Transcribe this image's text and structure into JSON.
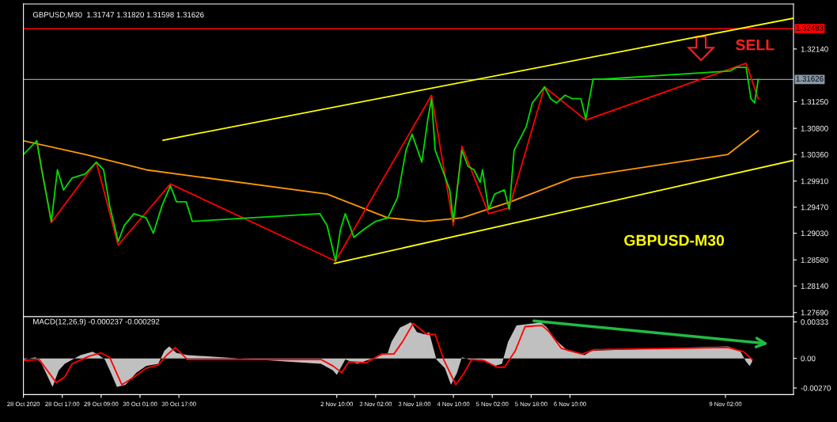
{
  "chart_data": [
    {
      "type": "line",
      "title": "GBPUSD,M30  1.31747 1.31820 1.31598 1.31626",
      "annotations": [
        "SELL",
        "GBPUSD-M30"
      ],
      "xlim": [
        "2020-10-28T01:00",
        "2020-11-10T06:00"
      ],
      "ylim": [
        1.2762,
        1.329
      ],
      "tick_labels": "y",
      "yticks": [
        {
          "value": 1.2769,
          "label": "1.27690"
        },
        {
          "value": 1.2814,
          "label": "1.28140"
        },
        {
          "value": 1.2858,
          "label": "1.28580"
        },
        {
          "value": 1.2903,
          "label": "1.29030"
        },
        {
          "value": 1.2947,
          "label": "1.29470"
        },
        {
          "value": 1.2991,
          "label": "1.29910"
        },
        {
          "value": 1.3036,
          "label": "1.30360"
        },
        {
          "value": 1.308,
          "label": "1.30800"
        },
        {
          "value": 1.3125,
          "label": "1.31250"
        },
        {
          "value": 1.3214,
          "label": "1.32140"
        }
      ],
      "ref_lines": [
        {
          "axis": "y",
          "value": 1.32483,
          "label": "1.32483",
          "color": "#ff0000"
        },
        {
          "axis": "y",
          "value": 1.31626,
          "label": "1.31626",
          "color": "#8899aa"
        }
      ],
      "series": [
        {
          "color": "#ff9900",
          "x": [
            "2020-10-28T01:00",
            "2020-10-29T02:30",
            "2020-10-30T03:30",
            "2020-11-02T06:00",
            "2020-11-03T07:00",
            "2020-11-03T22:00",
            "2020-11-04T13:30",
            "2020-11-05T09:30",
            "2020-11-06T11:00",
            "2020-11-09T03:00",
            "2020-11-09T15:30"
          ],
          "values": [
            1.3059,
            1.3036,
            1.301,
            1.2969,
            1.2929,
            1.2923,
            1.2929,
            1.2956,
            1.2996,
            1.3036,
            1.3076
          ]
        },
        {
          "color": "#00dd00",
          "x": [
            "2020-10-28T01:00",
            "2020-10-28T06:30",
            "2020-10-28T08:30",
            "2020-10-28T12:30",
            "2020-10-28T15:00",
            "2020-10-28T17:30",
            "2020-10-28T21:00",
            "2020-10-29T02:30",
            "2020-10-29T07:00",
            "2020-10-29T10:00",
            "2020-10-29T12:30",
            "2020-10-29T16:00",
            "2020-10-29T18:30",
            "2020-10-29T22:30",
            "2020-10-30T03:30",
            "2020-10-30T06:30",
            "2020-10-30T10:00",
            "2020-10-30T13:30",
            "2020-10-30T16:00",
            "2020-10-30T20:00",
            "2020-10-30T22:30",
            "2020-11-02T03:00",
            "2020-11-02T06:00",
            "2020-11-02T09:30",
            "2020-11-02T11:30",
            "2020-11-02T13:30",
            "2020-11-02T17:00",
            "2020-11-02T21:00",
            "2020-11-03T02:00",
            "2020-11-03T07:00",
            "2020-11-03T11:00",
            "2020-11-03T14:30",
            "2020-11-03T17:00",
            "2020-11-03T21:00",
            "2020-11-03T23:30",
            "2020-11-04T01:00",
            "2020-11-04T02:30",
            "2020-11-04T05:30",
            "2020-11-04T08:30",
            "2020-11-04T10:00",
            "2020-11-04T11:30",
            "2020-11-04T13:30",
            "2020-11-04T16:00",
            "2020-11-04T18:30",
            "2020-11-04T21:00",
            "2020-11-04T22:00",
            "2020-11-05T00:30",
            "2020-11-05T03:00",
            "2020-11-05T07:00",
            "2020-11-05T09:00",
            "2020-11-05T11:00",
            "2020-11-05T13:30",
            "2020-11-05T16:00",
            "2020-11-05T18:30",
            "2020-11-05T21:00",
            "2020-11-05T23:30",
            "2020-11-06T02:00",
            "2020-11-06T04:30",
            "2020-11-06T08:00",
            "2020-11-06T11:00",
            "2020-11-06T14:30",
            "2020-11-06T16:30",
            "2020-11-06T19:30",
            "2020-11-06T23:30",
            "2020-11-09T04:00",
            "2020-11-09T06:30",
            "2020-11-09T10:30",
            "2020-11-09T12:30",
            "2020-11-09T14:00",
            "2020-11-09T15:30"
          ],
          "values": [
            1.3036,
            1.3059,
            1.301,
            1.2923,
            1.301,
            1.2976,
            1.2996,
            1.3003,
            1.3023,
            1.301,
            1.2949,
            1.2889,
            1.2916,
            1.2936,
            1.2929,
            1.2903,
            1.2949,
            1.2983,
            1.2956,
            1.2956,
            1.2923,
            1.2936,
            1.2916,
            1.2856,
            1.2909,
            1.2936,
            1.2896,
            1.2909,
            1.2923,
            1.2929,
            1.2963,
            1.3043,
            1.307,
            1.3023,
            1.3096,
            1.313,
            1.3043,
            1.301,
            1.2976,
            1.2923,
            1.2976,
            1.3043,
            1.3016,
            1.301,
            1.2989,
            1.301,
            1.2943,
            1.2969,
            1.2976,
            1.2943,
            1.3043,
            1.3063,
            1.3083,
            1.3123,
            1.3136,
            1.315,
            1.313,
            1.3123,
            1.3136,
            1.313,
            1.313,
            1.3096,
            1.3163,
            1.3163,
            1.3177,
            1.3183,
            1.3183,
            1.313,
            1.3123,
            1.3163
          ]
        },
        {
          "color": "#ff0000",
          "x": [
            "2020-10-28T06:30",
            "2020-10-28T12:30",
            "2020-10-29T07:00",
            "2020-10-29T16:00",
            "2020-10-30T13:30",
            "2020-11-02T09:30",
            "2020-11-04T01:00",
            "2020-11-04T10:00",
            "2020-11-04T13:30",
            "2020-11-05T00:30",
            "2020-11-05T09:00",
            "2020-11-05T23:30",
            "2020-11-06T16:30",
            "2020-11-09T10:30",
            "2020-11-09T15:30"
          ],
          "values": [
            1.3059,
            1.2921,
            1.3023,
            1.2883,
            1.2986,
            1.2856,
            1.3136,
            1.2916,
            1.305,
            1.2936,
            1.2946,
            1.315,
            1.3094,
            1.319,
            1.313
          ]
        },
        {
          "color": "#ffff00",
          "x": [
            "2020-10-30T10:30",
            "2020-11-10T06:00"
          ],
          "values": [
            1.306,
            1.3266
          ]
        },
        {
          "color": "#ffff00",
          "x": [
            "2020-11-02T09:00",
            "2020-11-10T06:00"
          ],
          "values": [
            1.2852,
            1.3026
          ]
        }
      ]
    },
    {
      "type": "area",
      "title": "MACD(12,26,9) -0.000237 -0.000292",
      "xlim": [
        "2020-10-28T01:00",
        "2020-11-10T06:00"
      ],
      "ylim": [
        -0.0033,
        0.0038
      ],
      "xticks": [
        {
          "value": "2020-10-28T01:00",
          "label": "28 Oct 2020"
        },
        {
          "value": "2020-10-28T17:00",
          "label": "28 Oct 17:00"
        },
        {
          "value": "2020-10-29T09:00",
          "label": "29 Oct 09:00"
        },
        {
          "value": "2020-10-30T01:00",
          "label": "30 Oct 01:00"
        },
        {
          "value": "2020-10-30T17:00",
          "label": "30 Oct 17:00"
        },
        {
          "value": "2020-11-02T10:00",
          "label": "2 Nov 10:00"
        },
        {
          "value": "2020-11-03T02:00",
          "label": "3 Nov 02:00"
        },
        {
          "value": "2020-11-03T18:00",
          "label": "3 Nov 18:00"
        },
        {
          "value": "2020-11-04T10:00",
          "label": "4 Nov 10:00"
        },
        {
          "value": "2020-11-05T02:00",
          "label": "5 Nov 02:00"
        },
        {
          "value": "2020-11-05T18:00",
          "label": "5 Nov 18:00"
        },
        {
          "value": "2020-11-06T10:00",
          "label": "6 Nov 10:00"
        },
        {
          "value": "2020-11-09T02:00",
          "label": "9 Nov 02:00"
        }
      ],
      "yticks": [
        {
          "value": -0.0027,
          "label": "-0.00270"
        },
        {
          "value": 0,
          "label": "0.00"
        },
        {
          "value": 0.00333,
          "label": "0.00333"
        }
      ],
      "series": [
        {
          "color": "#c0c0c0",
          "x": [
            "2020-10-28T01:00",
            "2020-10-28T06:00",
            "2020-10-28T08:30",
            "2020-10-28T13:00",
            "2020-10-28T15:30",
            "2020-10-28T18:00",
            "2020-10-29T00:30",
            "2020-10-29T05:30",
            "2020-10-29T08:00",
            "2020-10-29T10:30",
            "2020-10-29T13:00",
            "2020-10-29T15:30",
            "2020-10-29T19:00",
            "2020-10-29T23:30",
            "2020-10-30T03:30",
            "2020-10-30T08:30",
            "2020-10-30T11:00",
            "2020-10-30T13:00",
            "2020-10-30T16:00",
            "2020-10-30T20:30",
            "2020-11-02T03:30",
            "2020-11-02T08:30",
            "2020-11-02T10:00",
            "2020-11-02T13:30",
            "2020-11-02T18:30",
            "2020-11-02T23:30",
            "2020-11-03T04:30",
            "2020-11-03T07:00",
            "2020-11-03T08:30",
            "2020-11-03T12:00",
            "2020-11-03T16:30",
            "2020-11-03T19:00",
            "2020-11-03T22:00",
            "2020-11-04T00:00",
            "2020-11-04T03:00",
            "2020-11-04T06:30",
            "2020-11-04T09:00",
            "2020-11-04T11:30",
            "2020-11-04T13:30",
            "2020-11-04T16:30",
            "2020-11-04T21:30",
            "2020-11-05T03:00",
            "2020-11-05T06:00",
            "2020-11-05T08:30",
            "2020-11-05T12:00",
            "2020-11-05T19:30",
            "2020-11-05T22:00",
            "2020-11-06T00:30",
            "2020-11-06T04:00",
            "2020-11-06T09:00",
            "2020-11-06T16:00",
            "2020-11-06T19:00",
            "2020-11-09T03:00",
            "2020-11-09T08:00",
            "2020-11-09T10:30",
            "2020-11-09T12:00",
            "2020-11-09T13:00"
          ],
          "values": [
            -0.0001,
            0.0001,
            -0.0005,
            -0.0026,
            -0.0011,
            -0.0005,
            0.0003,
            0.0006,
            0.0003,
            -0.0001,
            -0.0013,
            -0.0026,
            -0.0024,
            -0.0013,
            -0.0007,
            -0.0005,
            0.0007,
            0.0011,
            0.0005,
            0.0003,
            -0.0005,
            -0.0011,
            -0.0015,
            -0.0001,
            -0.0005,
            -0.0001,
            0.0003,
            0.0005,
            0.0015,
            0.0028,
            0.0033,
            0.0024,
            0.0022,
            0.0024,
            -0.0001,
            -0.0009,
            -0.0024,
            -0.0013,
            0.0001,
            -0.0001,
            -0.0001,
            -0.0007,
            -0.0005,
            0.0015,
            0.003,
            0.0032,
            0.0033,
            0.0028,
            0.0017,
            0.0007,
            0.0003,
            0.0007,
            0.0011,
            0.0007,
            -0.0003,
            -0.0007,
            -0.0003
          ]
        },
        {
          "type": "line",
          "color": "#ff0000",
          "x": [
            "2020-10-28T01:00",
            "2020-10-28T07:30",
            "2020-10-28T14:30",
            "2020-10-28T18:00",
            "2020-10-28T21:00",
            "2020-10-29T04:00",
            "2020-10-29T09:00",
            "2020-10-29T12:30",
            "2020-10-29T17:30",
            "2020-10-29T22:30",
            "2020-10-30T03:30",
            "2020-10-30T08:30",
            "2020-10-30T12:00",
            "2020-10-30T15:30",
            "2020-10-30T20:30",
            "2020-11-02T03:30",
            "2020-11-02T08:30",
            "2020-11-02T12:00",
            "2020-11-02T15:00",
            "2020-11-02T22:00",
            "2020-11-03T04:30",
            "2020-11-03T09:30",
            "2020-11-03T13:00",
            "2020-11-03T17:30",
            "2020-11-03T23:00",
            "2020-11-04T02:30",
            "2020-11-04T06:00",
            "2020-11-04T11:00",
            "2020-11-04T14:30",
            "2020-11-04T17:30",
            "2020-11-04T22:30",
            "2020-11-05T04:00",
            "2020-11-05T07:00",
            "2020-11-05T11:30",
            "2020-11-05T15:30",
            "2020-11-05T22:30",
            "2020-11-06T01:30",
            "2020-11-06T06:30",
            "2020-11-06T15:00",
            "2020-11-06T20:00",
            "2020-11-09T03:00",
            "2020-11-09T09:30",
            "2020-11-09T13:00"
          ],
          "values": [
            -0.0002,
            -0.0001,
            -0.0022,
            -0.0017,
            -0.0005,
            0.0002,
            0.0005,
            0.0001,
            -0.0024,
            -0.0017,
            -0.0009,
            -0.0006,
            0.0003,
            0.001,
            -0.0001,
            -0.0001,
            -0.0007,
            -0.0013,
            -0.0003,
            -0.0004,
            0.0004,
            0.0004,
            0.0015,
            0.0032,
            0.0022,
            0.0022,
            -0.0001,
            -0.0024,
            -0.0013,
            -0.0001,
            -0.0002,
            -0.0008,
            -0.0008,
            0.0007,
            0.0029,
            0.003,
            0.0024,
            0.0009,
            0.0004,
            0.0008,
            0.001,
            0.0006,
            -0.0001
          ]
        }
      ]
    }
  ]
}
